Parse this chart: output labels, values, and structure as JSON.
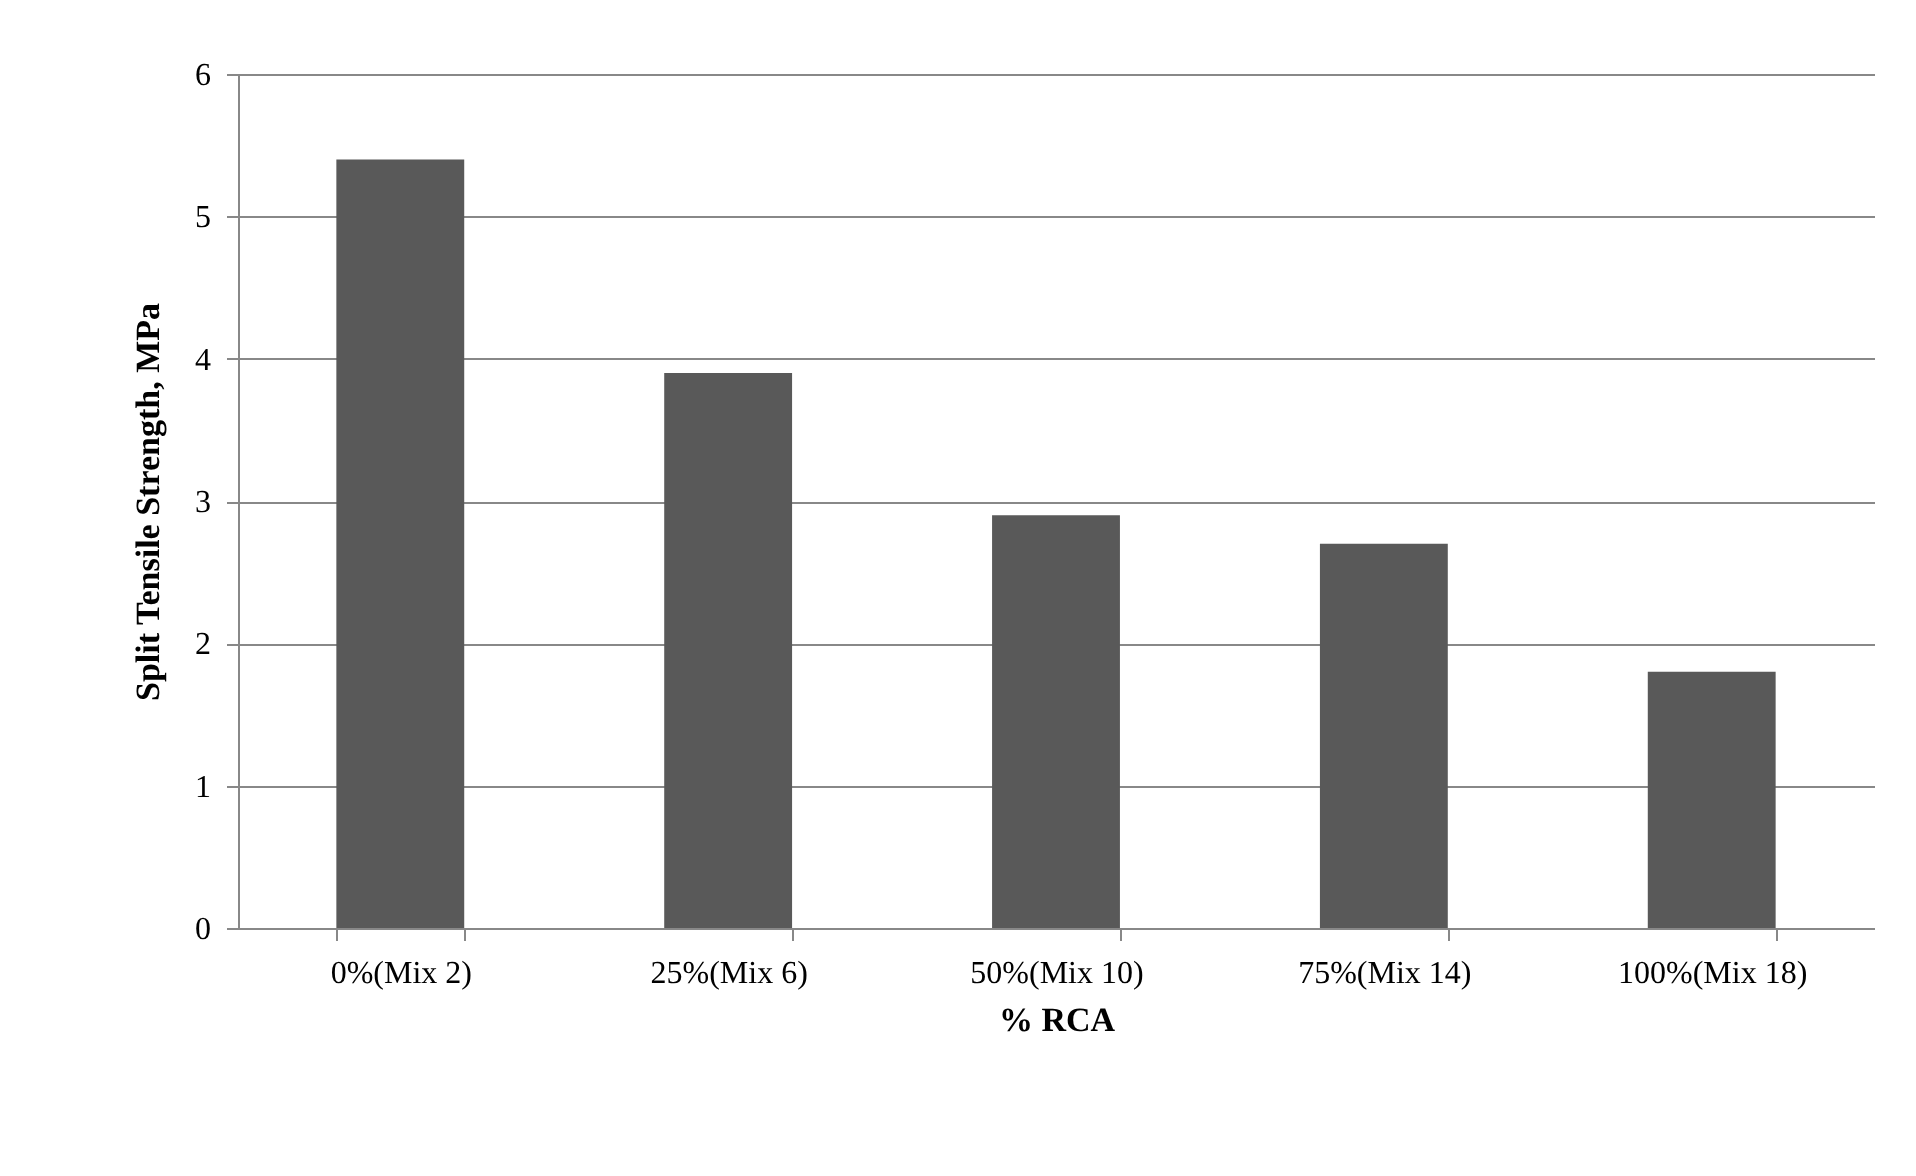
{
  "chart_data": {
    "type": "bar",
    "xlabel": "% RCA",
    "ylabel": "Split Tensile Strength, MPa",
    "categories": [
      "0%(Mix 2)",
      "25%(Mix 6)",
      "50%(Mix 10)",
      "75%(Mix 14)",
      "100%(Mix 18)"
    ],
    "values": [
      5.4,
      3.9,
      2.9,
      2.7,
      1.8
    ],
    "color": "#595959",
    "ylim": [
      0,
      6
    ],
    "yticks": [
      0,
      1,
      2,
      3,
      4,
      5,
      6
    ],
    "grid": "y"
  }
}
